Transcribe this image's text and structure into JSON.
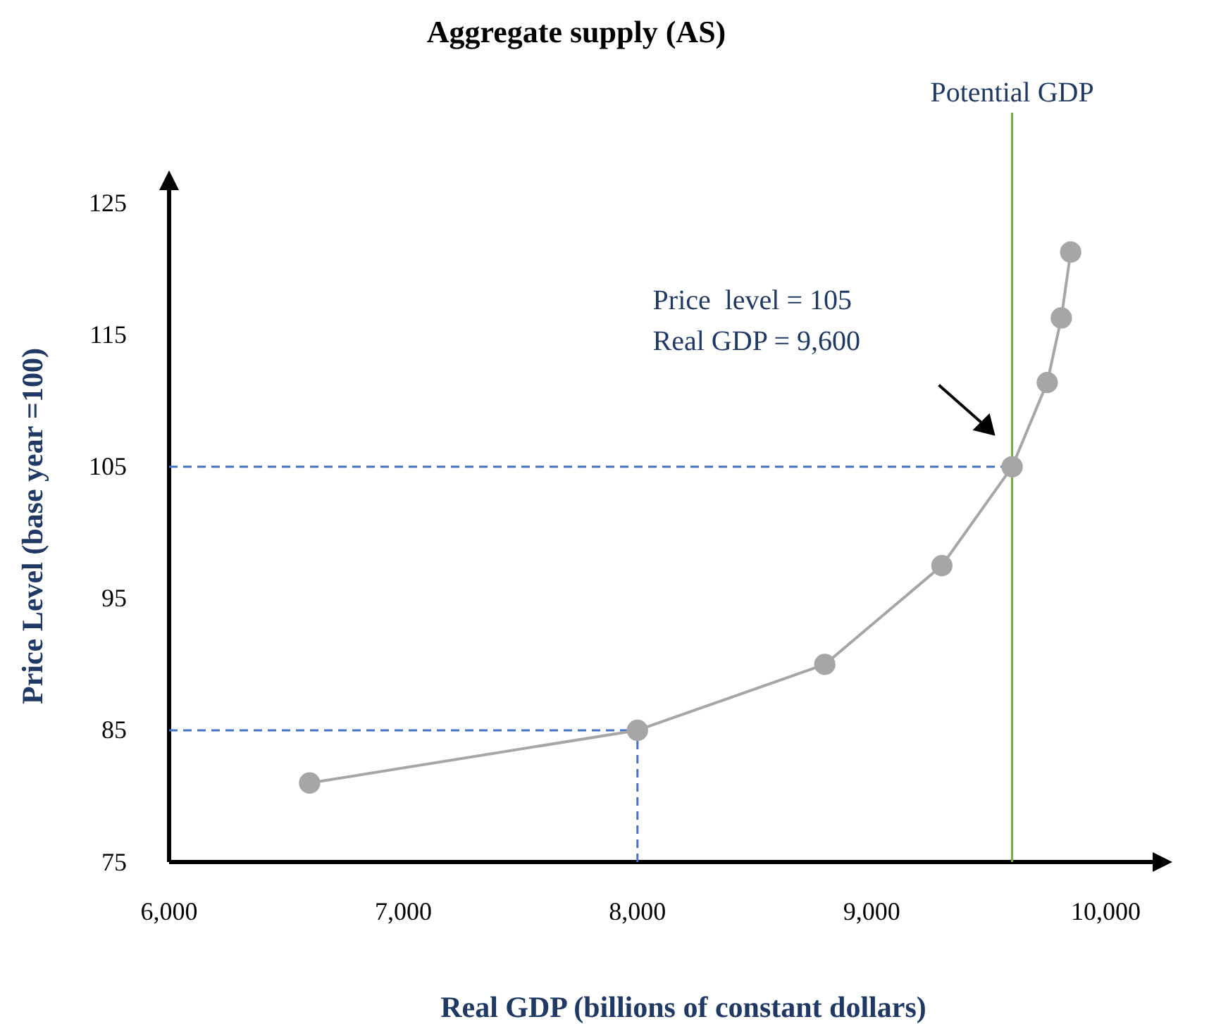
{
  "chart_data": {
    "type": "line",
    "title": "Aggregate supply (AS)",
    "xlabel": "Real GDP (billions of constant dollars)",
    "ylabel": "Price Level (base year =100)",
    "x": [
      6600,
      8000,
      8800,
      9300,
      9600,
      9750,
      9810,
      9850
    ],
    "series": [
      {
        "color": "#a6a6a6",
        "values": [
          81,
          85,
          90,
          97.5,
          105,
          111.4,
          116.3,
          121.3
        ]
      }
    ],
    "xlim": [
      6000,
      10200
    ],
    "xticks": [
      {
        "value": 6000,
        "label": "6,000"
      },
      {
        "value": 7000,
        "label": "7,000"
      },
      {
        "value": 8000,
        "label": "8,000"
      },
      {
        "value": 9000,
        "label": "9,000"
      },
      {
        "value": 10000,
        "label": "10,000"
      }
    ],
    "ylim": [
      75,
      126
    ],
    "yticks": [
      75,
      85,
      95,
      105,
      115,
      125
    ],
    "grid": false,
    "marker": "circle",
    "line_style": "solid",
    "ref_lines": [
      {
        "axis": "x",
        "value": 9600,
        "label": "Potential GDP",
        "color": "#70ad47",
        "line_style": "solid"
      },
      {
        "axis": "y",
        "value": 105,
        "label": null,
        "color": "#4472c4",
        "line_style": "dashed"
      },
      {
        "axis": "y",
        "value": 85,
        "label": null,
        "color": "#4472c4",
        "line_style": "dashed"
      },
      {
        "axis": "x",
        "value": 8000,
        "label": null,
        "color": "#4472c4",
        "line_style": "dashed"
      }
    ],
    "annotations": [
      "Price  level = 105\nReal GDP = 9,600"
    ]
  }
}
